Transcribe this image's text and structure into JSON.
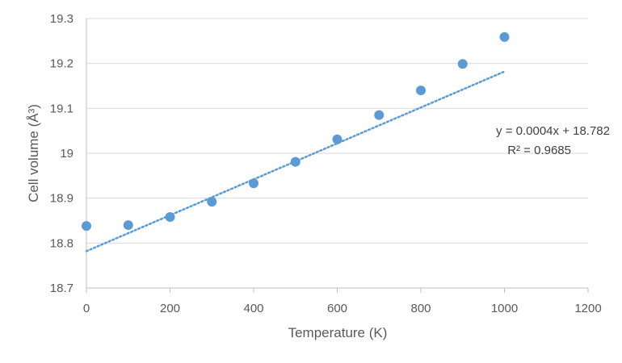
{
  "chart_data": {
    "type": "scatter",
    "xlabel": "Temperature (K)",
    "ylabel": "Cell volume (Å³)",
    "xlim": [
      0,
      1200
    ],
    "ylim": [
      18.7,
      19.3
    ],
    "x_ticks": [
      0,
      200,
      400,
      600,
      800,
      1000,
      1200
    ],
    "y_ticks": [
      18.7,
      18.8,
      18.9,
      19,
      19.1,
      19.2,
      19.3
    ],
    "x_tick_labels": [
      "0",
      "200",
      "400",
      "600",
      "800",
      "1000",
      "1200"
    ],
    "y_tick_labels": [
      "18.7",
      "18.8",
      "18.9",
      "19",
      "19.1",
      "19.2",
      "19.3"
    ],
    "grid": "horizontal",
    "colors": {
      "marker": "#5B9BD5",
      "trendline": "#5B9BD5",
      "grid": "#D9D9D9",
      "axis": "#BFBFBF"
    },
    "series": [
      {
        "x": [
          0,
          100,
          200,
          300,
          400,
          500,
          600,
          700,
          800,
          900,
          1000
        ],
        "y": [
          18.838,
          18.84,
          18.858,
          18.892,
          18.933,
          18.981,
          19.031,
          19.085,
          19.14,
          19.199,
          19.259
        ]
      }
    ],
    "trendline": {
      "type": "linear",
      "slope": 0.0004,
      "intercept": 18.782,
      "x_range": [
        0,
        1000
      ],
      "equation": "y = 0.0004x + 18.782",
      "r_squared": "R² = 0.9685"
    }
  }
}
